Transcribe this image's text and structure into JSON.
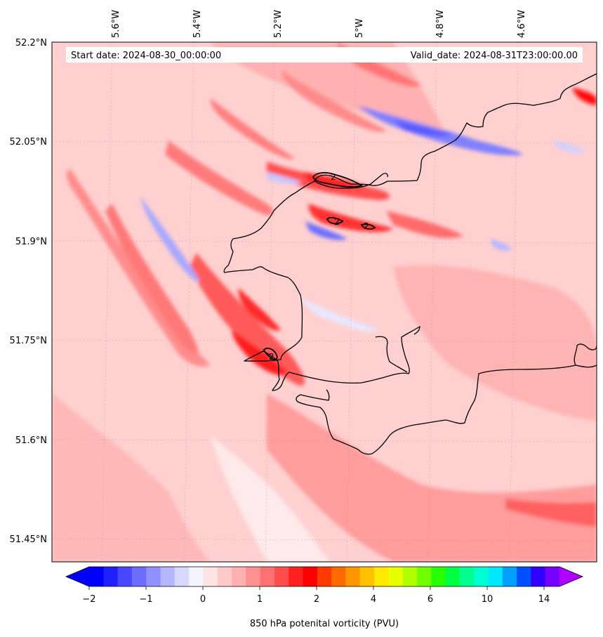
{
  "map": {
    "start_date": "Start date: 2024-08-30_00:00:00",
    "valid_date": "Valid_date: 2024-08-31T23:00:00.00",
    "lon_labels": [
      "5.6°W",
      "5.4°W",
      "5.2°W",
      "5°W",
      "4.8°W",
      "4.6°W"
    ],
    "lat_labels": [
      "52.2°N",
      "52.05°N",
      "51.9°N",
      "51.75°N",
      "51.6°N",
      "51.45°N"
    ],
    "contour_labels": [
      "2",
      "2",
      "2",
      "2"
    ],
    "colors": {
      "coast": "#000000",
      "contour": "#000000",
      "background_low": "#ffd6d6",
      "background_mid": "#ff9c9c"
    }
  },
  "colorbar": {
    "label": "850 hPa potenital vorticity (PVU)",
    "tick_labels": [
      "−2",
      "−1",
      "0",
      "1",
      "2",
      "4",
      "6",
      "10",
      "14"
    ],
    "colors": [
      "#0000ff",
      "#2020ff",
      "#4848ff",
      "#6c6cff",
      "#9090ff",
      "#b4b4ff",
      "#d8d8ff",
      "#f4f4ff",
      "#ffe4e4",
      "#ffcaca",
      "#ffb0b0",
      "#ff9090",
      "#ff7070",
      "#ff4c4c",
      "#ff2020",
      "#ff0000",
      "#ff3a00",
      "#ff6a00",
      "#ff9600",
      "#ffc000",
      "#ffe800",
      "#e8ff00",
      "#b0ff00",
      "#70ff00",
      "#28ff00",
      "#00ff40",
      "#00ff90",
      "#00ffd0",
      "#00e8ff",
      "#00a0ff",
      "#0050ff",
      "#3000ff",
      "#7800ff"
    ],
    "under_color": "#0000ff",
    "over_color": "#b000ff"
  }
}
